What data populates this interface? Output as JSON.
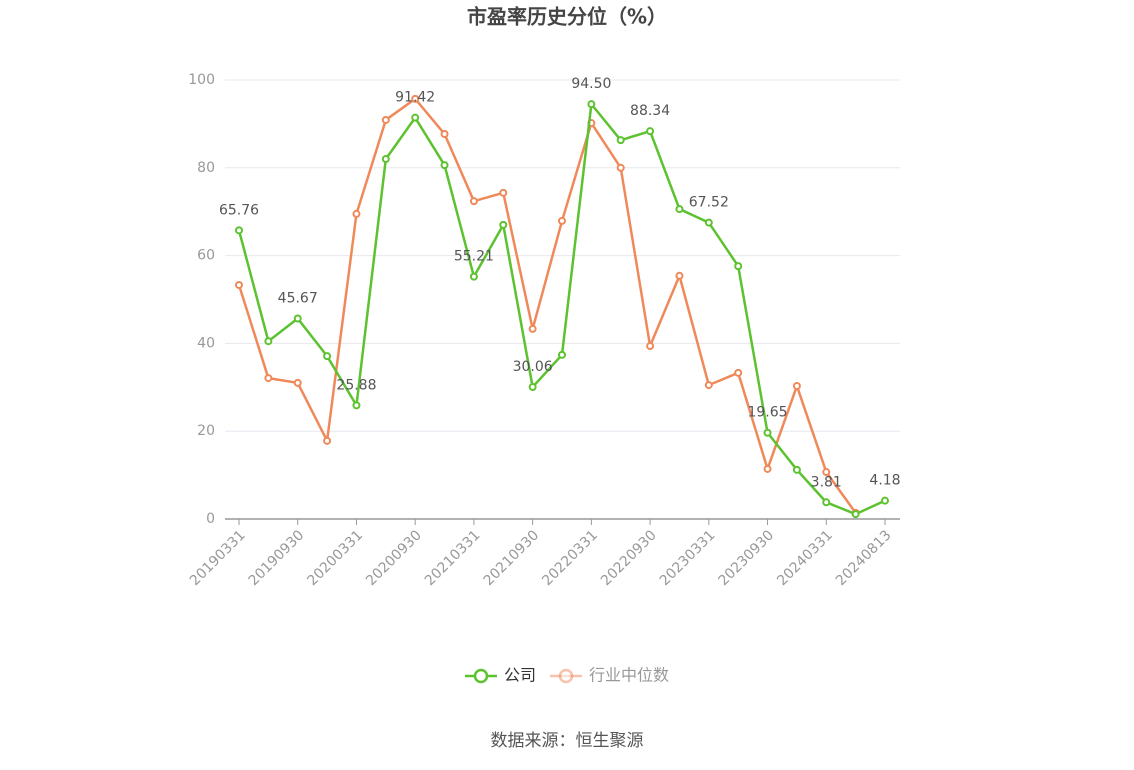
{
  "chart_data": {
    "type": "line",
    "title": "市盈率历史分位（%）",
    "categories": [
      "20190331",
      null,
      "20190930",
      null,
      "20200331",
      null,
      "20200930",
      null,
      "20210331",
      null,
      "20210930",
      null,
      "20220331",
      null,
      "20220930",
      null,
      "20230331",
      null,
      "20230930",
      null,
      "20240331",
      null,
      "20240813"
    ],
    "series": [
      {
        "name": "公司",
        "color": "#5cc22f",
        "values": [
          65.76,
          40.5,
          45.67,
          37.1,
          25.88,
          82.0,
          91.42,
          80.6,
          55.21,
          67.0,
          30.06,
          37.4,
          94.5,
          86.3,
          88.34,
          70.6,
          67.52,
          57.6,
          19.65,
          11.2,
          3.81,
          1.1,
          4.18
        ],
        "value_labels": [
          "65.76",
          null,
          "45.67",
          null,
          "25.88",
          null,
          "91.42",
          null,
          "55.21",
          null,
          "30.06",
          null,
          "94.50",
          null,
          "88.34",
          null,
          "67.52",
          null,
          "19.65",
          null,
          "3.81",
          null,
          "4.18"
        ]
      },
      {
        "name": "行业中位数",
        "color": "#f0895a",
        "values": [
          53.3,
          32.1,
          31.0,
          17.8,
          69.5,
          90.9,
          95.7,
          87.7,
          72.4,
          74.3,
          43.3,
          67.9,
          90.2,
          80.0,
          39.4,
          55.4,
          30.5,
          33.3,
          11.4,
          30.3,
          10.7,
          1.4,
          null
        ]
      }
    ],
    "ylim": [
      0,
      100
    ],
    "yticks": [
      0,
      20,
      40,
      60,
      80,
      100
    ],
    "grid": true,
    "source": "数据来源：恒生聚源"
  }
}
